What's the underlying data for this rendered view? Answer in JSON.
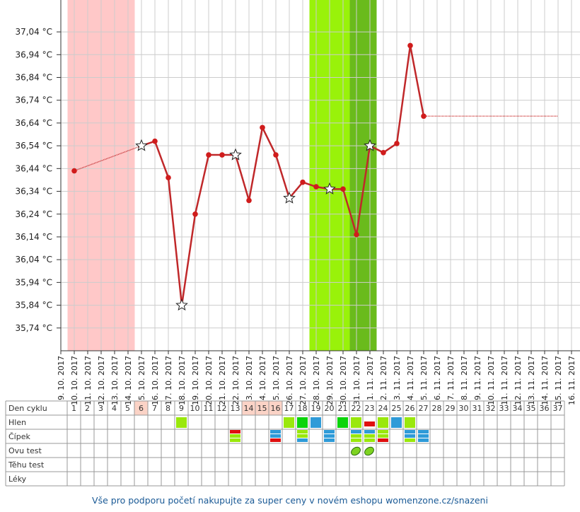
{
  "chart_data": {
    "type": "line",
    "x": [
      "9. 10. 2017",
      "10. 10. 2017",
      "11. 10. 2017",
      "12. 10. 2017",
      "13. 10. 2017",
      "14. 10. 2017",
      "15. 10. 2017",
      "16. 10. 2017",
      "17. 10. 2017",
      "18. 10. 2017",
      "19. 10. 2017",
      "20. 10. 2017",
      "21. 10. 2017",
      "22. 10. 2017",
      "23. 10. 2017",
      "24. 10. 2017",
      "25. 10. 2017",
      "26. 10. 2017",
      "27. 10. 2017",
      "28. 10. 2017",
      "29. 10. 2017",
      "30. 10. 2017",
      "31. 10. 2017",
      "1. 11. 2017",
      "2. 11. 2017",
      "3. 11. 2017",
      "4. 11. 2017",
      "5. 11. 2017",
      "6. 11. 2017",
      "7. 11. 2017",
      "8. 11. 2017",
      "9. 11. 2017",
      "10. 11. 2017",
      "11. 11. 2017",
      "12. 11. 2017",
      "13. 11. 2017",
      "14. 11. 2017",
      "15. 11. 2017",
      "16. 11. 2017"
    ],
    "series": [
      {
        "color": "#c0282a",
        "values": [
          null,
          36.43,
          null,
          null,
          null,
          null,
          36.54,
          36.56,
          36.4,
          35.84,
          36.24,
          36.5,
          36.5,
          36.5,
          36.3,
          36.62,
          36.5,
          36.31,
          36.38,
          36.36,
          36.35,
          36.35,
          36.15,
          36.54,
          36.51,
          36.55,
          36.98,
          36.67,
          null,
          null,
          null,
          null,
          null,
          null,
          null,
          null,
          null,
          null,
          null
        ],
        "markers": [
          null,
          "dot",
          null,
          null,
          null,
          null,
          "star",
          "dot",
          "dot",
          "star",
          "dot",
          "dot",
          "dot",
          "star",
          "dot",
          "dot",
          "dot",
          "star",
          "dot",
          "dot",
          "star",
          "dot",
          "dot",
          "star",
          "dot",
          "dot",
          "dot",
          "dot",
          null,
          null,
          null,
          null,
          null,
          null,
          null,
          null,
          null,
          null,
          null
        ]
      },
      {
        "color": "#d04040",
        "dashed": true,
        "values": [
          null,
          null,
          null,
          null,
          null,
          null,
          null,
          null,
          null,
          null,
          null,
          null,
          null,
          null,
          null,
          null,
          null,
          null,
          null,
          null,
          null,
          null,
          null,
          null,
          null,
          null,
          null,
          36.67,
          36.67,
          36.67,
          36.67,
          36.67,
          36.67,
          36.67,
          36.67,
          36.67,
          36.67,
          36.67,
          null
        ]
      }
    ],
    "bands": [
      {
        "from": "10. 10. 2017",
        "to": "14. 10. 2017",
        "color": "#ffc8c8"
      },
      {
        "from": "28. 10. 2017",
        "to": "30. 10. 2017",
        "color": "#99f20a"
      },
      {
        "from": "31. 10. 2017",
        "to": "1. 11. 2017",
        "color": "#6abb1c"
      }
    ],
    "ylim": [
      35.64,
      37.18
    ],
    "yticks": [
      {
        "value": 35.74,
        "label": "35,74 °C"
      },
      {
        "value": 35.84,
        "label": "35,84 °C"
      },
      {
        "value": 35.94,
        "label": "35,94 °C"
      },
      {
        "value": 36.04,
        "label": "36,04 °C"
      },
      {
        "value": 36.14,
        "label": "36,14 °C"
      },
      {
        "value": 36.24,
        "label": "36,24 °C"
      },
      {
        "value": 36.34,
        "label": "36,34 °C"
      },
      {
        "value": 36.44,
        "label": "36,44 °C"
      },
      {
        "value": 36.54,
        "label": "36,54 °C"
      },
      {
        "value": 36.64,
        "label": "36,64 °C"
      },
      {
        "value": 36.74,
        "label": "36,74 °C"
      },
      {
        "value": 36.84,
        "label": "36,84 °C"
      },
      {
        "value": 36.94,
        "label": "36,94 °C"
      },
      {
        "value": 37.04,
        "label": "37,04 °C"
      }
    ],
    "grid": true
  },
  "table": {
    "rows": [
      "Den cyklu",
      "Hlen",
      "Čípek",
      "Ovu test",
      "Těhu test",
      "Léky"
    ],
    "days": [
      1,
      2,
      3,
      4,
      5,
      6,
      7,
      8,
      9,
      10,
      11,
      12,
      13,
      14,
      15,
      16,
      17,
      18,
      19,
      20,
      21,
      22,
      23,
      24,
      25,
      26,
      27,
      28,
      29,
      30,
      31,
      32,
      33,
      34,
      35,
      36,
      37
    ],
    "highlight_days": [
      6,
      14,
      15,
      16
    ]
  },
  "footer": {
    "text": "Vše pro podporu početí nakupujte za super ceny v novém eshopu womenzone.cz/snazeni"
  }
}
